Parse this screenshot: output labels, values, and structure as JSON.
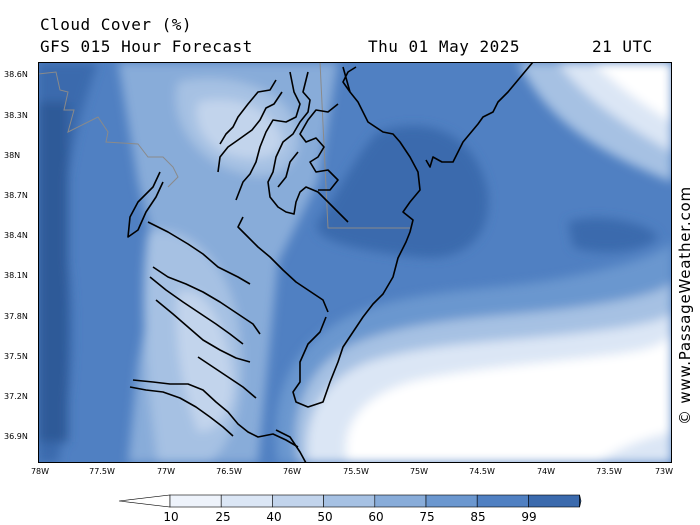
{
  "header": {
    "title": "Cloud Cover (%)",
    "subtitle": "GFS 015 Hour Forecast",
    "date": "Thu 01 May 2025",
    "time": "21 UTC"
  },
  "credit": "© www.PassageWeather.com",
  "axes": {
    "lat_labels": [
      "38.6N",
      "38.3N",
      "38N",
      "38.7N",
      "38.4N",
      "38.1N",
      "37.8N",
      "37.5N",
      "37.2N",
      "36.9N"
    ],
    "lon_labels": [
      "78W",
      "77.5W",
      "77W",
      "76.5W",
      "76W",
      "75.5W",
      "75W",
      "74.5W",
      "74W",
      "73.5W",
      "73W"
    ]
  },
  "legend": {
    "labels": [
      "10",
      "25",
      "40",
      "50",
      "60",
      "75",
      "85",
      "99"
    ],
    "colors": [
      "#ffffff",
      "#eef3fb",
      "#dbe6f5",
      "#c2d4ec",
      "#a6c1e3",
      "#88acd9",
      "#6b97cf",
      "#5080c2",
      "#3b6aad",
      "#2d5a98"
    ]
  }
}
